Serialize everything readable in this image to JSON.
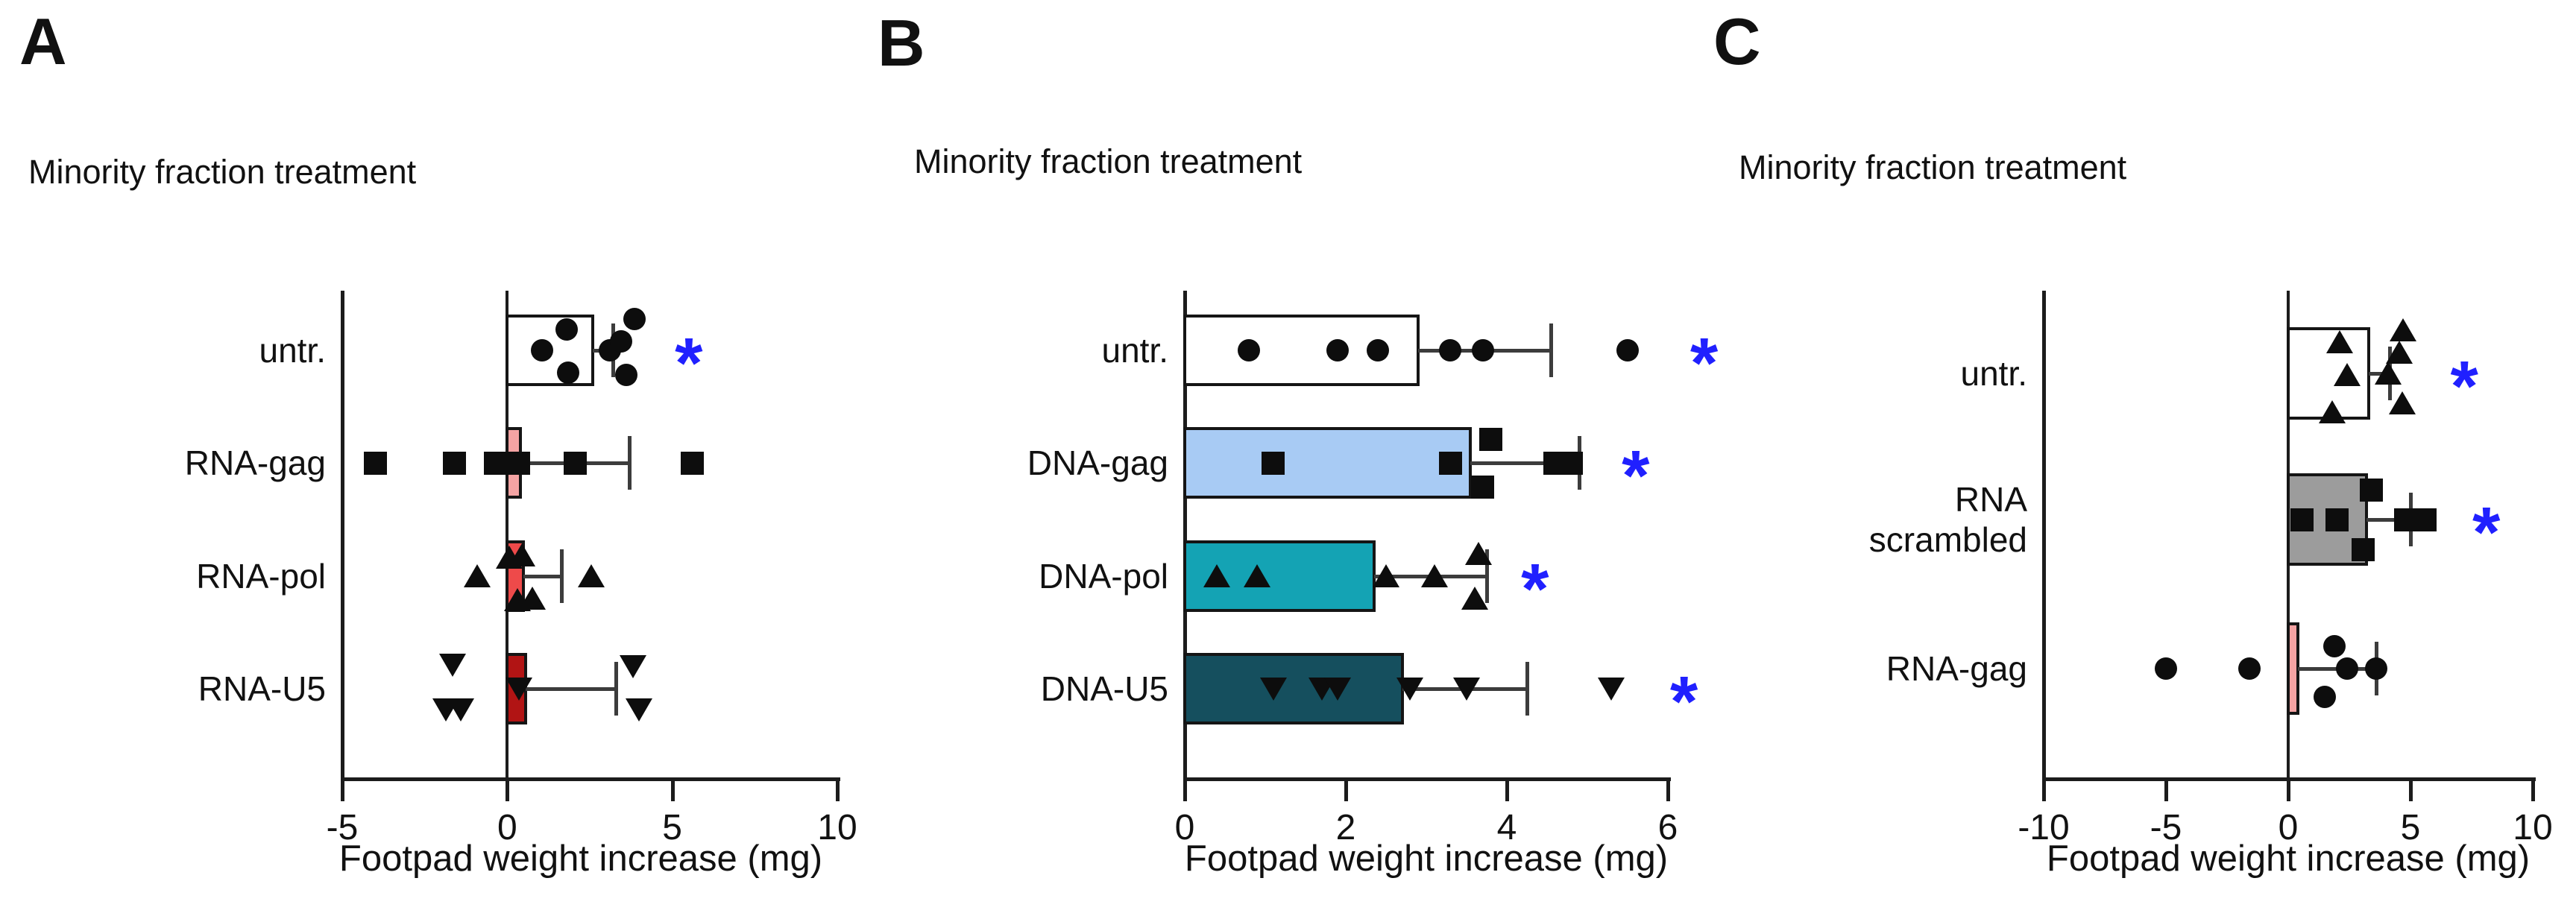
{
  "figure": {
    "shared_title": "Minority fraction treatment",
    "shared_xlabel": "Footpad weight increase (mg)"
  },
  "colors": {
    "asterisk_blue": "#2020FF",
    "axis_black": "#1c1c1c",
    "error_gray": "#3c3c3c",
    "marker_black": "#0d0d0d",
    "pink": "#F4A3A3",
    "red": "#EE4A4A",
    "dark_red": "#B11414",
    "light_blue": "#A8CBF4",
    "teal": "#14A3B4",
    "dark_teal": "#154F5E",
    "gray": "#9C9C9C",
    "white": "#FFFFFF"
  },
  "chart_data": [
    {
      "type": "bar",
      "panel": "A",
      "title": "Minority fraction treatment",
      "xlabel": "Footpad weight increase (mg)",
      "xlim": [
        -5,
        10
      ],
      "ticks": [
        -5,
        0,
        5,
        10
      ],
      "orientation": "horizontal",
      "rows": [
        {
          "label": "untr.",
          "marker": "circle",
          "bar": 2.6,
          "color": "#FFFFFF",
          "err": 3.2,
          "asterisk": 5.5,
          "points": [
            {
              "v": 1.05,
              "dy": 0
            },
            {
              "v": 1.8,
              "dy": -28
            },
            {
              "v": 1.85,
              "dy": 30
            },
            {
              "v": 3.1,
              "dy": 0
            },
            {
              "v": 3.45,
              "dy": -12
            },
            {
              "v": 3.85,
              "dy": -42
            },
            {
              "v": 3.6,
              "dy": 33
            }
          ]
        },
        {
          "label": "RNA-gag",
          "marker": "square",
          "bar": 0.4,
          "color": "#F4A3A3",
          "err": 3.7,
          "points": [
            {
              "v": -4.0,
              "dy": 0
            },
            {
              "v": -1.6,
              "dy": 0
            },
            {
              "v": -0.35,
              "dy": 0
            },
            {
              "v": 0.35,
              "dy": 0
            },
            {
              "v": 2.05,
              "dy": 0
            },
            {
              "v": 5.6,
              "dy": 0
            }
          ]
        },
        {
          "label": "RNA-pol",
          "marker": "triangle-up",
          "bar": 0.5,
          "color": "#EE4A4A",
          "err": 1.65,
          "points": [
            {
              "v": -0.9,
              "dy": 0
            },
            {
              "v": 0.05,
              "dy": -25
            },
            {
              "v": 0.45,
              "dy": -28
            },
            {
              "v": 0.3,
              "dy": 32
            },
            {
              "v": 0.75,
              "dy": 30
            },
            {
              "v": 2.55,
              "dy": 0
            }
          ]
        },
        {
          "label": "RNA-U5",
          "marker": "triangle-down",
          "bar": 0.55,
          "color": "#B11414",
          "err": 3.3,
          "points": [
            {
              "v": -1.65,
              "dy": -32
            },
            {
              "v": -1.85,
              "dy": 28
            },
            {
              "v": -1.4,
              "dy": 28
            },
            {
              "v": 0.35,
              "dy": 0
            },
            {
              "v": 3.8,
              "dy": -30
            },
            {
              "v": 4.0,
              "dy": 28
            }
          ]
        }
      ]
    },
    {
      "type": "bar",
      "panel": "B",
      "title": "Minority fraction treatment",
      "xlabel": "Footpad weight increase (mg)",
      "xlim": [
        0,
        6
      ],
      "ticks": [
        0,
        2,
        4,
        6
      ],
      "orientation": "horizontal",
      "rows": [
        {
          "label": "untr.",
          "marker": "circle",
          "bar": 2.9,
          "color": "#FFFFFF",
          "err": 4.55,
          "asterisk": 6.45,
          "points": [
            {
              "v": 0.8,
              "dy": 0
            },
            {
              "v": 1.9,
              "dy": 0
            },
            {
              "v": 2.4,
              "dy": 0
            },
            {
              "v": 3.3,
              "dy": 0
            },
            {
              "v": 3.7,
              "dy": 0
            },
            {
              "v": 5.5,
              "dy": 0
            }
          ]
        },
        {
          "label": "DNA-gag",
          "marker": "square",
          "bar": 3.55,
          "color": "#A8CBF4",
          "err": 4.9,
          "asterisk": 5.6,
          "points": [
            {
              "v": 1.1,
              "dy": 0
            },
            {
              "v": 3.3,
              "dy": 0
            },
            {
              "v": 3.8,
              "dy": -32
            },
            {
              "v": 3.7,
              "dy": 32
            },
            {
              "v": 4.6,
              "dy": 0
            },
            {
              "v": 4.8,
              "dy": 0
            }
          ]
        },
        {
          "label": "DNA-pol",
          "marker": "triangle-up",
          "bar": 2.35,
          "color": "#14A3B4",
          "err": 3.75,
          "asterisk": 4.35,
          "points": [
            {
              "v": 0.4,
              "dy": 0
            },
            {
              "v": 0.9,
              "dy": 0
            },
            {
              "v": 2.5,
              "dy": 0
            },
            {
              "v": 3.1,
              "dy": 0
            },
            {
              "v": 3.65,
              "dy": -30
            },
            {
              "v": 3.6,
              "dy": 30
            }
          ]
        },
        {
          "label": "DNA-U5",
          "marker": "triangle-down",
          "bar": 2.7,
          "color": "#154F5E",
          "err": 4.25,
          "asterisk": 6.2,
          "points": [
            {
              "v": 1.1,
              "dy": 0
            },
            {
              "v": 1.7,
              "dy": 0
            },
            {
              "v": 1.9,
              "dy": 0
            },
            {
              "v": 2.8,
              "dy": 0
            },
            {
              "v": 3.5,
              "dy": 0
            },
            {
              "v": 5.3,
              "dy": 0
            }
          ]
        }
      ]
    },
    {
      "type": "bar",
      "panel": "C",
      "title": "Minority fraction treatment",
      "xlabel": "Footpad weight increase (mg)",
      "xlim": [
        -10,
        10
      ],
      "ticks": [
        -10,
        -5,
        0,
        5,
        10
      ],
      "orientation": "horizontal",
      "rows": [
        {
          "label": "untr.",
          "marker": "triangle-up",
          "bar": 3.3,
          "color": "#FFFFFF",
          "err": 4.15,
          "asterisk": 7.2,
          "points": [
            {
              "v": 1.8,
              "dy": 52
            },
            {
              "v": 2.1,
              "dy": -42
            },
            {
              "v": 2.4,
              "dy": 2
            },
            {
              "v": 4.1,
              "dy": 0
            },
            {
              "v": 4.55,
              "dy": -28
            },
            {
              "v": 4.7,
              "dy": -58
            },
            {
              "v": 4.65,
              "dy": 40
            }
          ]
        },
        {
          "label": "RNA\nscrambled",
          "marker": "square",
          "bar": 3.2,
          "color": "#9C9C9C",
          "err": 5.0,
          "asterisk": 8.1,
          "points": [
            {
              "v": 0.55,
              "dy": 0
            },
            {
              "v": 2.0,
              "dy": 0
            },
            {
              "v": 3.4,
              "dy": -40
            },
            {
              "v": 3.05,
              "dy": 40
            },
            {
              "v": 4.8,
              "dy": 0
            },
            {
              "v": 5.6,
              "dy": 0
            }
          ]
        },
        {
          "label": "RNA-gag",
          "marker": "circle",
          "bar": 0.4,
          "color": "#F4A3A3",
          "err": 3.6,
          "points": [
            {
              "v": -5.0,
              "dy": 0
            },
            {
              "v": -1.6,
              "dy": 0
            },
            {
              "v": 1.5,
              "dy": 38
            },
            {
              "v": 1.9,
              "dy": -30
            },
            {
              "v": 2.4,
              "dy": 0
            },
            {
              "v": 3.6,
              "dy": 0
            }
          ]
        }
      ]
    }
  ]
}
